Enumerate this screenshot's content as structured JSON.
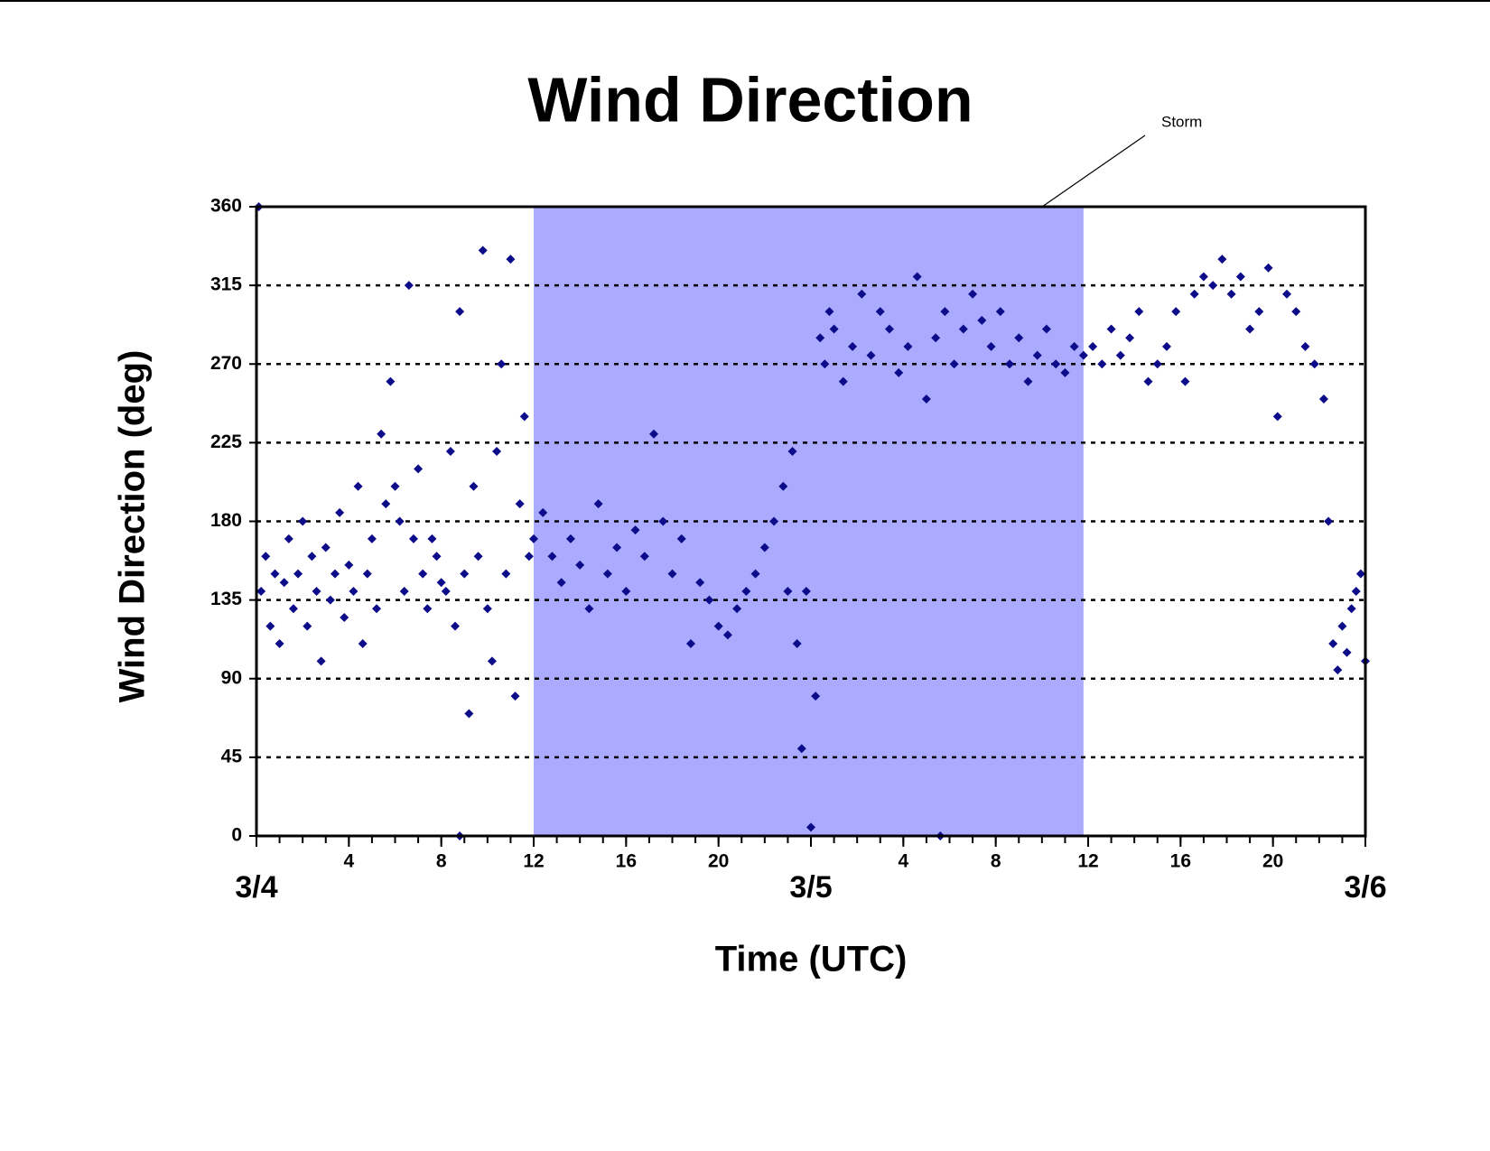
{
  "chart_data": {
    "type": "scatter",
    "title": "Wind Direction",
    "x_label": "Time (UTC)",
    "y_label": "Wind Direction (deg)",
    "color": "#0c0c8a",
    "grid": true,
    "xlim": [
      0,
      48
    ],
    "ylim": [
      0,
      360
    ],
    "yticks": [
      0,
      45,
      90,
      135,
      180,
      225,
      270,
      315,
      360
    ],
    "xticks": [
      {
        "value": 0,
        "label": "3/4"
      },
      4,
      8,
      12,
      16,
      20,
      {
        "value": 24,
        "label": "3/5"
      },
      {
        "value": 28,
        "label": "4"
      },
      {
        "value": 32,
        "label": "8"
      },
      {
        "value": 36,
        "label": "12"
      },
      {
        "value": 40,
        "label": "16"
      },
      {
        "value": 44,
        "label": "20"
      },
      {
        "value": 48,
        "label": "3/6"
      }
    ],
    "xminorticks": [
      0,
      1,
      2,
      3,
      4,
      5,
      6,
      7,
      8,
      9,
      10,
      11,
      12,
      13,
      14,
      15,
      16,
      17,
      18,
      19,
      20,
      21,
      22,
      23,
      24,
      25,
      26,
      27,
      28,
      29,
      30,
      31,
      32,
      33,
      34,
      35,
      36,
      37,
      38,
      39,
      40,
      41,
      42,
      43,
      44,
      45,
      46,
      47,
      48
    ],
    "shaded_region": {
      "x": [
        12,
        35.8
      ],
      "color": "#aaaaff",
      "label": "Storm"
    },
    "series": [
      {
        "name": "Wind Direction",
        "x": [
          0.1,
          0.2,
          0.4,
          0.6,
          0.8,
          1.0,
          1.2,
          1.4,
          1.6,
          1.8,
          2.0,
          2.2,
          2.4,
          2.6,
          2.8,
          3.0,
          3.2,
          3.4,
          3.6,
          3.8,
          4.0,
          4.2,
          4.4,
          4.6,
          4.8,
          5.0,
          5.2,
          5.4,
          5.6,
          5.8,
          6.0,
          6.2,
          6.4,
          6.6,
          6.8,
          7.0,
          7.2,
          7.4,
          7.6,
          7.8,
          8.0,
          8.2,
          8.4,
          8.6,
          8.8,
          8.8,
          9.0,
          9.2,
          9.4,
          9.6,
          9.8,
          10.0,
          10.2,
          10.4,
          10.6,
          10.8,
          11.0,
          11.2,
          11.4,
          11.6,
          11.8,
          12.0,
          12.4,
          12.8,
          13.2,
          13.6,
          14.0,
          14.4,
          14.8,
          15.2,
          15.6,
          16.0,
          16.4,
          16.8,
          17.2,
          17.6,
          18.0,
          18.4,
          18.8,
          19.2,
          19.6,
          20.0,
          20.4,
          20.8,
          21.2,
          21.6,
          22.0,
          22.4,
          22.8,
          23.0,
          23.2,
          23.4,
          23.6,
          23.8,
          24.0,
          24.2,
          24.4,
          24.6,
          24.8,
          25.0,
          25.4,
          25.8,
          26.2,
          26.6,
          27.0,
          27.4,
          27.8,
          28.2,
          28.6,
          29.0,
          29.4,
          29.6,
          29.8,
          30.2,
          30.6,
          31.0,
          31.4,
          31.8,
          32.2,
          32.6,
          33.0,
          33.4,
          33.8,
          34.2,
          34.6,
          35.0,
          35.4,
          35.8,
          36.2,
          36.6,
          37.0,
          37.4,
          37.8,
          38.2,
          38.6,
          39.0,
          39.4,
          39.8,
          40.2,
          40.6,
          41.0,
          41.4,
          41.8,
          42.2,
          42.6,
          43.0,
          43.4,
          43.8,
          44.2,
          44.6,
          45.0,
          45.4,
          45.8,
          46.2,
          46.4,
          46.6,
          46.8,
          47.0,
          47.2,
          47.4,
          47.6,
          47.8,
          48.0
        ],
        "values": [
          360,
          140,
          160,
          120,
          150,
          110,
          145,
          170,
          130,
          150,
          180,
          120,
          160,
          140,
          100,
          165,
          135,
          150,
          185,
          125,
          155,
          140,
          200,
          110,
          150,
          170,
          130,
          230,
          190,
          260,
          200,
          180,
          140,
          315,
          170,
          210,
          150,
          130,
          170,
          160,
          145,
          140,
          220,
          120,
          300,
          0,
          150,
          70,
          200,
          160,
          335,
          130,
          100,
          220,
          270,
          150,
          330,
          80,
          190,
          240,
          160,
          170,
          185,
          160,
          145,
          170,
          155,
          130,
          190,
          150,
          165,
          140,
          175,
          160,
          230,
          180,
          150,
          170,
          110,
          145,
          135,
          120,
          115,
          130,
          140,
          150,
          165,
          180,
          200,
          140,
          220,
          110,
          50,
          140,
          5,
          80,
          285,
          270,
          300,
          290,
          260,
          280,
          310,
          275,
          300,
          290,
          265,
          280,
          320,
          250,
          285,
          0,
          300,
          270,
          290,
          310,
          295,
          280,
          300,
          270,
          285,
          260,
          275,
          290,
          270,
          265,
          280,
          275,
          280,
          270,
          290,
          275,
          285,
          300,
          260,
          270,
          280,
          300,
          260,
          310,
          320,
          315,
          330,
          310,
          320,
          290,
          300,
          325,
          240,
          310,
          300,
          280,
          270,
          250,
          180,
          110,
          95,
          120,
          105,
          130,
          140,
          150,
          100
        ]
      }
    ]
  }
}
